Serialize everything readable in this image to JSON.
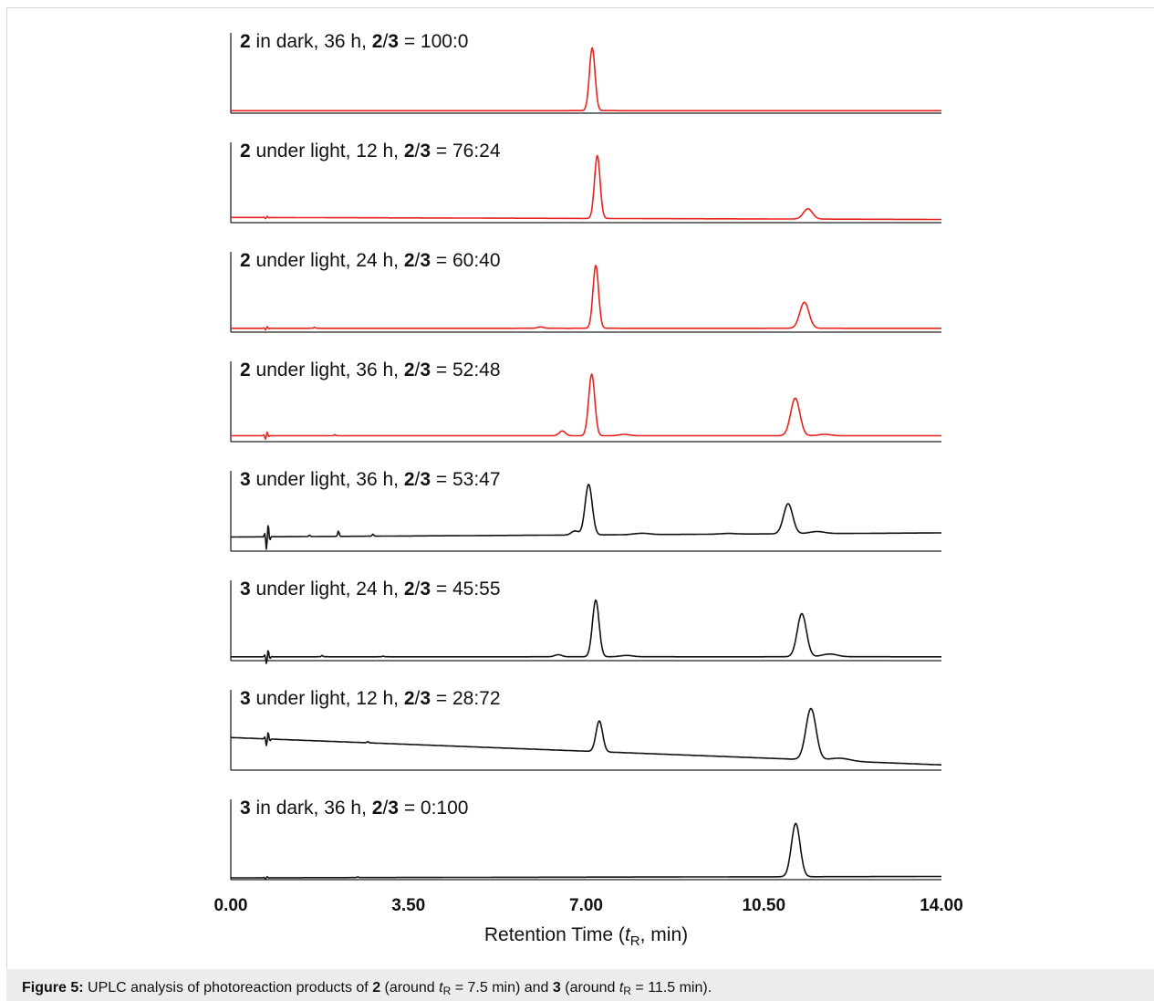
{
  "chart_data": {
    "type": "line",
    "layout": "stacked",
    "xlabel": "Retention Time (tR, min)",
    "xlim": [
      0,
      14
    ],
    "xticks": [
      "0.00",
      "3.50",
      "7.00",
      "10.50",
      "14.00"
    ],
    "peak_color_red": "#e8221c",
    "peak_color_black": "#111111",
    "panels": [
      {
        "title_parts": [
          "2",
          " in dark, 36 h, ",
          "2",
          "/",
          "3",
          " = 100:0"
        ],
        "color": "#e8221c",
        "baseline_start": 0.01,
        "baseline_end": 0.01,
        "artifact": 0.7,
        "artifact_amp": 0.0,
        "peaks": [
          {
            "t": 7.12,
            "h": 0.92,
            "w": 0.055
          }
        ],
        "noise": []
      },
      {
        "title_parts": [
          "2",
          " under light, 12 h, ",
          "2",
          "/",
          "3",
          " = 76:24"
        ],
        "color": "#e8221c",
        "baseline_start": 0.05,
        "baseline_end": 0.02,
        "artifact": 0.7,
        "artifact_amp": 0.02,
        "peaks": [
          {
            "t": 7.22,
            "h": 0.92,
            "w": 0.055
          },
          {
            "t": 11.37,
            "h": 0.15,
            "w": 0.09
          }
        ],
        "noise": []
      },
      {
        "title_parts": [
          "2",
          " under light, 24 h, ",
          "2",
          "/",
          "3",
          " = 60:40"
        ],
        "color": "#e8221c",
        "baseline_start": 0.03,
        "baseline_end": 0.03,
        "artifact": 0.7,
        "artifact_amp": 0.03,
        "peaks": [
          {
            "t": 7.19,
            "h": 0.92,
            "w": 0.055
          },
          {
            "t": 11.3,
            "h": 0.38,
            "w": 0.09
          },
          {
            "t": 6.1,
            "h": 0.02,
            "w": 0.06
          }
        ],
        "noise": [
          {
            "t": 1.65,
            "h": 0.015
          }
        ]
      },
      {
        "title_parts": [
          "2",
          " under light, 36 h, ",
          "2",
          "/",
          "3",
          " = 52:48"
        ],
        "color": "#e8221c",
        "baseline_start": 0.06,
        "baseline_end": 0.06,
        "artifact": 0.7,
        "artifact_amp": 0.06,
        "peaks": [
          {
            "t": 7.11,
            "h": 0.9,
            "w": 0.06
          },
          {
            "t": 11.12,
            "h": 0.55,
            "w": 0.09
          },
          {
            "t": 6.53,
            "h": 0.07,
            "w": 0.06
          },
          {
            "t": 7.75,
            "h": 0.02,
            "w": 0.1
          },
          {
            "t": 11.7,
            "h": 0.02,
            "w": 0.12
          }
        ],
        "noise": [
          {
            "t": 2.05,
            "h": 0.015
          }
        ]
      },
      {
        "title_parts": [
          "3",
          " under light, 36 h, ",
          "2",
          "/",
          "3",
          " = 53:47"
        ],
        "color": "#111111",
        "baseline_start": 0.18,
        "baseline_end": 0.24,
        "artifact": 0.72,
        "artifact_amp": 0.22,
        "peaks": [
          {
            "t": 7.05,
            "h": 0.74,
            "w": 0.07
          },
          {
            "t": 10.98,
            "h": 0.44,
            "w": 0.09
          },
          {
            "t": 6.78,
            "h": 0.06,
            "w": 0.07
          },
          {
            "t": 8.1,
            "h": 0.02,
            "w": 0.15
          },
          {
            "t": 11.55,
            "h": 0.03,
            "w": 0.15
          },
          {
            "t": 9.8,
            "h": 0.01,
            "w": 0.15
          }
        ],
        "noise": [
          {
            "t": 2.12,
            "h": 0.08
          },
          {
            "t": 1.55,
            "h": 0.02
          },
          {
            "t": 2.8,
            "h": 0.03
          }
        ]
      },
      {
        "title_parts": [
          "3",
          " under light, 24 h, ",
          "2",
          "/",
          "3",
          " = 45:55"
        ],
        "color": "#111111",
        "baseline_start": 0.03,
        "baseline_end": 0.03,
        "artifact": 0.72,
        "artifact_amp": 0.12,
        "peaks": [
          {
            "t": 7.19,
            "h": 0.83,
            "w": 0.065
          },
          {
            "t": 11.25,
            "h": 0.63,
            "w": 0.09
          },
          {
            "t": 6.45,
            "h": 0.03,
            "w": 0.07
          },
          {
            "t": 7.8,
            "h": 0.02,
            "w": 0.12
          },
          {
            "t": 11.8,
            "h": 0.04,
            "w": 0.15
          }
        ],
        "noise": [
          {
            "t": 1.8,
            "h": 0.02
          },
          {
            "t": 3.0,
            "h": 0.01
          }
        ]
      },
      {
        "title_parts": [
          "3",
          " under light, 12 h, ",
          "2",
          "/",
          "3",
          " = 28:72"
        ],
        "color": "#111111",
        "baseline_start": 0.45,
        "baseline_end": 0.05,
        "artifact": 0.72,
        "artifact_amp": 0.12,
        "peaks": [
          {
            "t": 7.26,
            "h": 0.45,
            "w": 0.065
          },
          {
            "t": 11.43,
            "h": 0.75,
            "w": 0.1
          },
          {
            "t": 12.0,
            "h": 0.04,
            "w": 0.2
          }
        ],
        "noise": [
          {
            "t": 2.7,
            "h": 0.02
          }
        ]
      },
      {
        "title_parts": [
          "3",
          " in dark, 36 h, ",
          "2",
          "/",
          "3",
          " = 0:100"
        ],
        "color": "#111111",
        "baseline_start": 0.0,
        "baseline_end": 0.02,
        "artifact": 0.7,
        "artifact_amp": 0.02,
        "peaks": [
          {
            "t": 11.13,
            "h": 0.78,
            "w": 0.085
          }
        ],
        "noise": [
          {
            "t": 2.5,
            "h": 0.01
          }
        ]
      }
    ]
  },
  "caption": {
    "prefix": "Figure 5:",
    "text1": " UPLC analysis of photoreaction products of ",
    "c2": "2",
    "text2": " (around ",
    "t": "t",
    "sub": "R",
    "text3": " = 7.5 min) and ",
    "c3": "3",
    "text4": " (around ",
    "text5": " = 11.5 min)."
  }
}
